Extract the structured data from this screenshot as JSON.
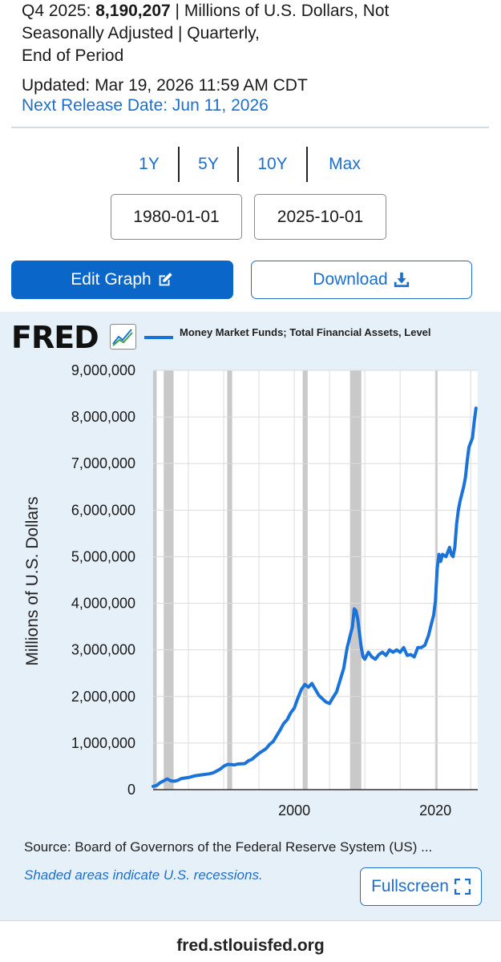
{
  "header": {
    "period": "Q4 2025:",
    "value": "8,190,207",
    "units_line1": "| Millions of U.S. Dollars, Not",
    "units_line2": "Seasonally Adjusted | Quarterly,",
    "units_line3": "End of Period",
    "updated": "Updated: Mar 19, 2026 11:59 AM CDT",
    "next_release": "Next Release Date: Jun 11, 2026"
  },
  "range_buttons": [
    "1Y",
    "5Y",
    "10Y",
    "Max"
  ],
  "dates": {
    "start": "1980-01-01",
    "end": "2025-10-01"
  },
  "actions": {
    "edit_graph": "Edit Graph",
    "download": "Download",
    "fullscreen": "Fullscreen"
  },
  "branding": {
    "logo": "FRED",
    "site": "fred.stlouisfed.org"
  },
  "footer": {
    "source": "Source: Board of Governors of the Federal Reserve System (US) ...",
    "recession_note": "Shaded areas indicate U.S. recessions."
  },
  "colors": {
    "accent": "#0a67c9",
    "link": "#1d6fcc",
    "series": "#1a73d9",
    "recession": "#c9c9c9",
    "panel": "#e6f0f8"
  },
  "chart_data": {
    "type": "line",
    "title": "",
    "xlabel": "",
    "ylabel": "Millions of U.S. Dollars",
    "xlim": [
      1980,
      2026
    ],
    "ylim": [
      0,
      9000000
    ],
    "y_ticks": [
      {
        "value": 0,
        "label": "0"
      },
      {
        "value": 1000000,
        "label": "1,000,000"
      },
      {
        "value": 2000000,
        "label": "2,000,000"
      },
      {
        "value": 3000000,
        "label": "3,000,000"
      },
      {
        "value": 4000000,
        "label": "4,000,000"
      },
      {
        "value": 5000000,
        "label": "5,000,000"
      },
      {
        "value": 6000000,
        "label": "6,000,000"
      },
      {
        "value": 7000000,
        "label": "7,000,000"
      },
      {
        "value": 8000000,
        "label": "8,000,000"
      },
      {
        "value": 9000000,
        "label": "9,000,000"
      }
    ],
    "x_ticks": [
      {
        "value": 2000,
        "label": "2000"
      },
      {
        "value": 2020,
        "label": "2020"
      }
    ],
    "grid": true,
    "recessions": [
      [
        1980.0,
        1980.5
      ],
      [
        1981.5,
        1982.9
      ],
      [
        1990.5,
        1991.2
      ],
      [
        2001.2,
        2001.9
      ],
      [
        2007.9,
        2009.5
      ],
      [
        2020.0,
        2020.3
      ]
    ],
    "series": [
      {
        "name": "Money Market Funds; Total Financial Assets, Level",
        "x": [
          1980.0,
          1980.5,
          1981.0,
          1981.5,
          1982.0,
          1982.5,
          1983.0,
          1983.5,
          1984.0,
          1985.0,
          1986.0,
          1987.0,
          1988.0,
          1988.5,
          1989.0,
          1989.5,
          1990.0,
          1990.5,
          1991.0,
          1991.5,
          1992.0,
          1993.0,
          1993.5,
          1994.0,
          1995.0,
          1996.0,
          1996.5,
          1997.0,
          1998.0,
          1998.5,
          1999.0,
          1999.5,
          2000.0,
          2000.5,
          2001.0,
          2001.5,
          2002.0,
          2002.5,
          2003.0,
          2003.5,
          2004.0,
          2004.5,
          2005.0,
          2005.5,
          2006.0,
          2006.5,
          2007.0,
          2007.5,
          2008.0,
          2008.25,
          2008.5,
          2008.75,
          2009.0,
          2009.25,
          2009.5,
          2009.75,
          2010.0,
          2010.5,
          2011.0,
          2011.5,
          2012.0,
          2012.5,
          2013.0,
          2013.5,
          2014.0,
          2014.5,
          2015.0,
          2015.5,
          2016.0,
          2016.5,
          2017.0,
          2017.5,
          2018.0,
          2018.5,
          2019.0,
          2019.5,
          2019.75,
          2020.0,
          2020.25,
          2020.5,
          2020.75,
          2021.0,
          2021.5,
          2022.0,
          2022.25,
          2022.5,
          2022.75,
          2023.0,
          2023.25,
          2023.5,
          2023.75,
          2024.0,
          2024.25,
          2024.5,
          2024.75,
          2025.0,
          2025.25,
          2025.5,
          2025.75
        ],
        "values": [
          70000,
          90000,
          150000,
          190000,
          230000,
          190000,
          180000,
          200000,
          240000,
          260000,
          300000,
          320000,
          340000,
          360000,
          400000,
          440000,
          500000,
          540000,
          540000,
          530000,
          550000,
          560000,
          620000,
          650000,
          780000,
          880000,
          970000,
          1030000,
          1280000,
          1420000,
          1500000,
          1650000,
          1750000,
          1960000,
          2150000,
          2260000,
          2200000,
          2280000,
          2150000,
          2020000,
          1950000,
          1880000,
          1850000,
          1980000,
          2100000,
          2350000,
          2600000,
          3050000,
          3350000,
          3500000,
          3880000,
          3840000,
          3660000,
          3350000,
          3050000,
          2850000,
          2800000,
          2950000,
          2850000,
          2800000,
          2900000,
          2950000,
          2880000,
          3000000,
          2950000,
          3000000,
          2950000,
          3050000,
          2880000,
          2900000,
          2850000,
          3050000,
          3050000,
          3100000,
          3300000,
          3600000,
          3750000,
          4050000,
          4750000,
          5050000,
          4900000,
          5050000,
          5000000,
          5200000,
          5050000,
          5000000,
          5200000,
          5700000,
          6000000,
          6200000,
          6350000,
          6500000,
          6700000,
          7050000,
          7350000,
          7450000,
          7550000,
          7900000,
          8190207
        ]
      }
    ]
  }
}
